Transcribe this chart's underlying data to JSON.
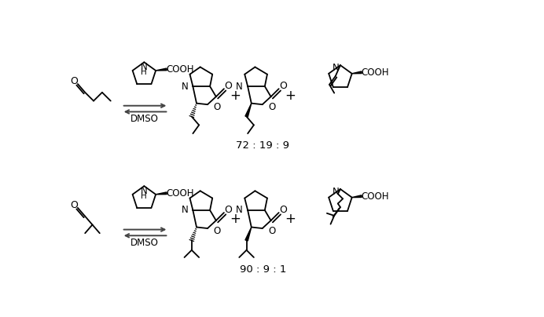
{
  "background_color": "#ffffff",
  "fig_width": 6.92,
  "fig_height": 4.04,
  "dpi": 100,
  "ratio_text_1": "72 : 19 : 9",
  "ratio_text_2": "90 : 9 : 1",
  "dmso_label": "DMSO"
}
